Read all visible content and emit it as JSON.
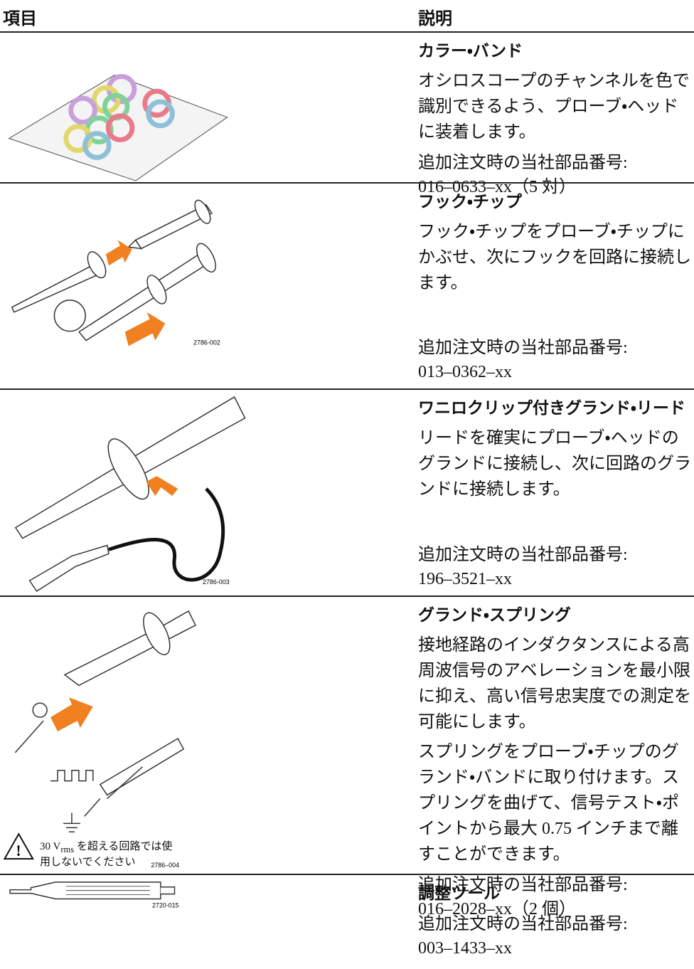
{
  "header": {
    "item": "項目",
    "description": "説明"
  },
  "rows": [
    {
      "title": "カラー・バンド",
      "paragraphs": [
        "オシロスコープのチャンネルを色で識別できるよう、プローブ・ヘッドに装着します。"
      ],
      "part_label": "追加注文時の当社部品番号:",
      "part_number": "016–0633–xx（5 対）"
    },
    {
      "title": "フック・チップ",
      "paragraphs": [
        "フック・チップをプローブ・チップにかぶせ、次にフックを回路に接続します。"
      ],
      "part_label": "追加注文時の当社部品番号:",
      "part_number": "013–0362–xx",
      "figure_code": "2786-002"
    },
    {
      "title": "ワニロクリップ付きグランド・リード",
      "paragraphs": [
        "リードを確実にプローブ・ヘッドのグランドに接続し、次に回路のグランドに接続します。"
      ],
      "part_label": "追加注文時の当社部品番号:",
      "part_number": "196–3521–xx",
      "figure_code": "2786-003"
    },
    {
      "title": "グランド・スプリング",
      "paragraphs": [
        "接地経路のインダクタンスによる高周波信号のアベレーションを最小限に抑え、高い信号忠実度での測定を可能にします。",
        "スプリングをプローブ・チップのグランド・バンドに取り付けます。スプリングを曲げて、信号テスト・ポイントから最大 0.75 インチまで離すことができます。"
      ],
      "part_label": "追加注文時の当社部品番号:",
      "part_number": "016–2028–xx（2 個）",
      "figure_code": "2786–004",
      "warning": {
        "prefix": "30 V",
        "subscript": "rms",
        "suffix": " を超える回路では使用しないでください"
      }
    },
    {
      "title": "調整ツール",
      "paragraphs": [],
      "part_label": "追加注文時の当社部品番号:",
      "part_number": "003–1433–xx",
      "figure_code": "2720-015"
    }
  ]
}
